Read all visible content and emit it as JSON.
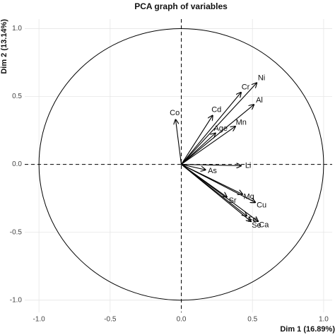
{
  "chart_data": {
    "type": "pca-variables",
    "title": "PCA graph of variables",
    "x_label": "Dim 1 (16.89%)",
    "y_label": "Dim 2 (13.14%)",
    "categories": [
      "Ni",
      "Cr",
      "Al",
      "Cd",
      "Mn",
      "Age",
      "Co",
      "Li",
      "As",
      "Mg",
      "Cu",
      "Sr",
      "Fe",
      "Ca",
      "Se"
    ],
    "x": [
      0.53,
      0.42,
      0.51,
      0.22,
      0.38,
      0.24,
      -0.04,
      0.42,
      0.17,
      0.43,
      0.52,
      0.32,
      0.46,
      0.54,
      0.49
    ],
    "values": [
      0.6,
      0.53,
      0.44,
      0.36,
      0.28,
      0.23,
      0.33,
      -0.01,
      -0.04,
      -0.22,
      -0.28,
      -0.24,
      -0.38,
      -0.42,
      -0.42
    ],
    "color": "#000000",
    "xlim": [
      -1.1,
      1.06
    ],
    "ylim": [
      -1.09,
      1.07
    ],
    "xticks": [
      {
        "value": -1,
        "label": "-1.0"
      },
      -0.5,
      {
        "value": 0,
        "label": "0.0"
      },
      0.5,
      {
        "value": 1,
        "label": "1.0"
      }
    ],
    "yticks": [
      {
        "value": -1,
        "label": "-1.0"
      },
      -0.5,
      {
        "value": 0,
        "label": "0.0"
      },
      0.5,
      {
        "value": 1,
        "label": "1.0"
      }
    ],
    "grid": true
  }
}
